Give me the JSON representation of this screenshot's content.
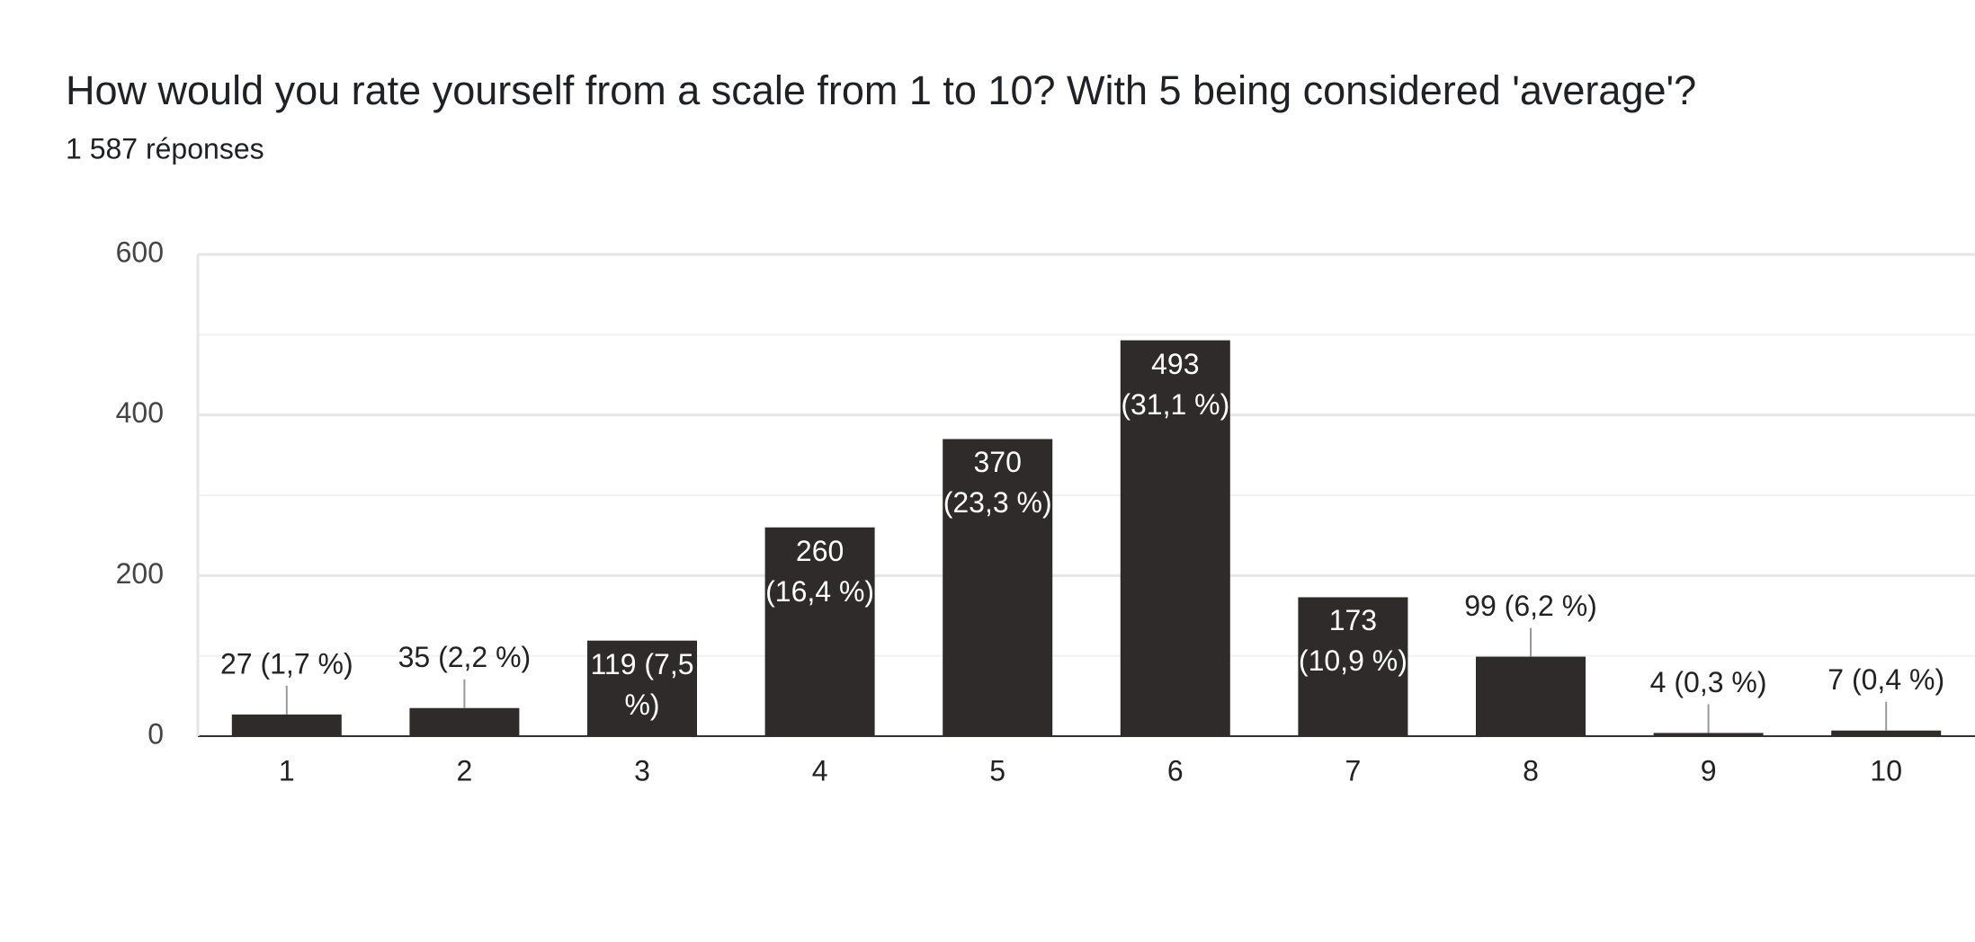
{
  "chart_data": {
    "type": "bar",
    "title": "How would you rate yourself from a scale from 1 to 10? With 5 being considered 'average'?",
    "subtitle": "1 587 réponses",
    "categories": [
      "1",
      "2",
      "3",
      "4",
      "5",
      "6",
      "7",
      "8",
      "9",
      "10"
    ],
    "values": [
      27,
      35,
      119,
      260,
      370,
      493,
      173,
      99,
      4,
      7
    ],
    "value_labels": [
      "27 (1,7 %)",
      "35 (2,2 %)",
      "119 (7,5 %)",
      "260 (16,4 %)",
      "370 (23,3 %)",
      "493 (31,1 %)",
      "173 (10,9 %)",
      "99 (6,2 %)",
      "4 (0,3 %)",
      "7 (0,4 %)"
    ],
    "color": "#2f2b2b",
    "ylim": [
      0,
      600
    ],
    "yticks": [
      0,
      200,
      400,
      600
    ],
    "minor_yticks": [
      100,
      300,
      500
    ],
    "grid": true
  }
}
